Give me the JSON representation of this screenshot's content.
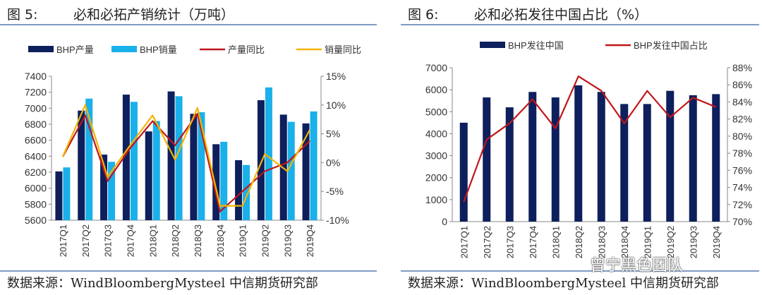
{
  "figures": [
    {
      "number": "图 5:",
      "title": "必和必拓产销统计（万吨）",
      "source": "数据来源：WindBloombergMysteel 中信期货研究部"
    },
    {
      "number": "图 6:",
      "title": "必和必拓发往中国占比（%）",
      "source": "数据来源：WindBloombergMysteel 中信期货研究部"
    }
  ],
  "watermark": "曾宁黑色团队",
  "chart_data": [
    {
      "type": "bar",
      "categories": [
        "2017Q1",
        "2017Q2",
        "2017Q3",
        "2017Q4",
        "2018Q1",
        "2018Q2",
        "2018Q3",
        "2018Q4",
        "2019Q1",
        "2019Q2",
        "2019Q3",
        "2019Q4"
      ],
      "series": [
        {
          "name": "BHP产量",
          "kind": "bar",
          "axis": "left",
          "color": "#0d1f5c",
          "values": [
            6210,
            6970,
            6420,
            7170,
            6710,
            7210,
            6930,
            6550,
            6350,
            7100,
            6920,
            6810
          ]
        },
        {
          "name": "BHP销量",
          "kind": "bar",
          "axis": "left",
          "color": "#1ab0ea",
          "values": [
            6260,
            7120,
            6330,
            7080,
            6840,
            7150,
            6950,
            6580,
            6290,
            7260,
            6830,
            6960
          ]
        },
        {
          "name": "产量同比",
          "kind": "line",
          "axis": "right",
          "color": "#c0161b",
          "values": [
            1.0,
            8.2,
            -3.2,
            2.5,
            7.2,
            3.0,
            8.5,
            -8.5,
            -5.0,
            -1.5,
            0.0,
            3.8
          ]
        },
        {
          "name": "销量同比",
          "kind": "line",
          "axis": "right",
          "color": "#f4b400",
          "values": [
            1.0,
            10.0,
            -2.5,
            3.0,
            8.2,
            0.5,
            9.5,
            -7.5,
            -7.5,
            1.5,
            -1.5,
            5.7
          ]
        }
      ],
      "yaxis_left": {
        "min": 5600,
        "max": 7400,
        "ticks": [
          "5600",
          "5800",
          "6000",
          "6200",
          "6400",
          "6600",
          "6800",
          "7000",
          "7200",
          "7400"
        ]
      },
      "yaxis_right": {
        "min": -10,
        "max": 15,
        "ticks": [
          "-10%",
          "-5%",
          "0%",
          "5%",
          "10%",
          "15%"
        ]
      },
      "legend": "top",
      "grid": false
    },
    {
      "type": "bar",
      "categories": [
        "2017Q1",
        "2017Q2",
        "2017Q3",
        "2017Q4",
        "2018Q1",
        "2018Q2",
        "2018Q3",
        "2018Q4",
        "2019Q1",
        "2019Q2",
        "2019Q3",
        "2019Q4"
      ],
      "series": [
        {
          "name": "BHP发往中国",
          "kind": "bar",
          "axis": "left",
          "color": "#0d1f5c",
          "values": [
            4500,
            5650,
            5200,
            5900,
            5650,
            6200,
            5900,
            5350,
            5350,
            5950,
            5750,
            5800
          ]
        },
        {
          "name": "BHP发往中国占比",
          "kind": "line",
          "axis": "right",
          "color": "#c0161b",
          "values": [
            72.3,
            79.6,
            81.5,
            84.3,
            80.9,
            87.0,
            85.3,
            81.5,
            85.3,
            82.2,
            84.5,
            83.4
          ]
        }
      ],
      "yaxis_left": {
        "min": 0,
        "max": 7000,
        "ticks": [
          "0",
          "1000",
          "2000",
          "3000",
          "4000",
          "5000",
          "6000",
          "7000"
        ]
      },
      "yaxis_right": {
        "min": 70,
        "max": 88,
        "ticks": [
          "70%",
          "72%",
          "74%",
          "76%",
          "78%",
          "80%",
          "82%",
          "84%",
          "86%",
          "88%"
        ]
      },
      "legend": "top",
      "grid": false
    }
  ]
}
